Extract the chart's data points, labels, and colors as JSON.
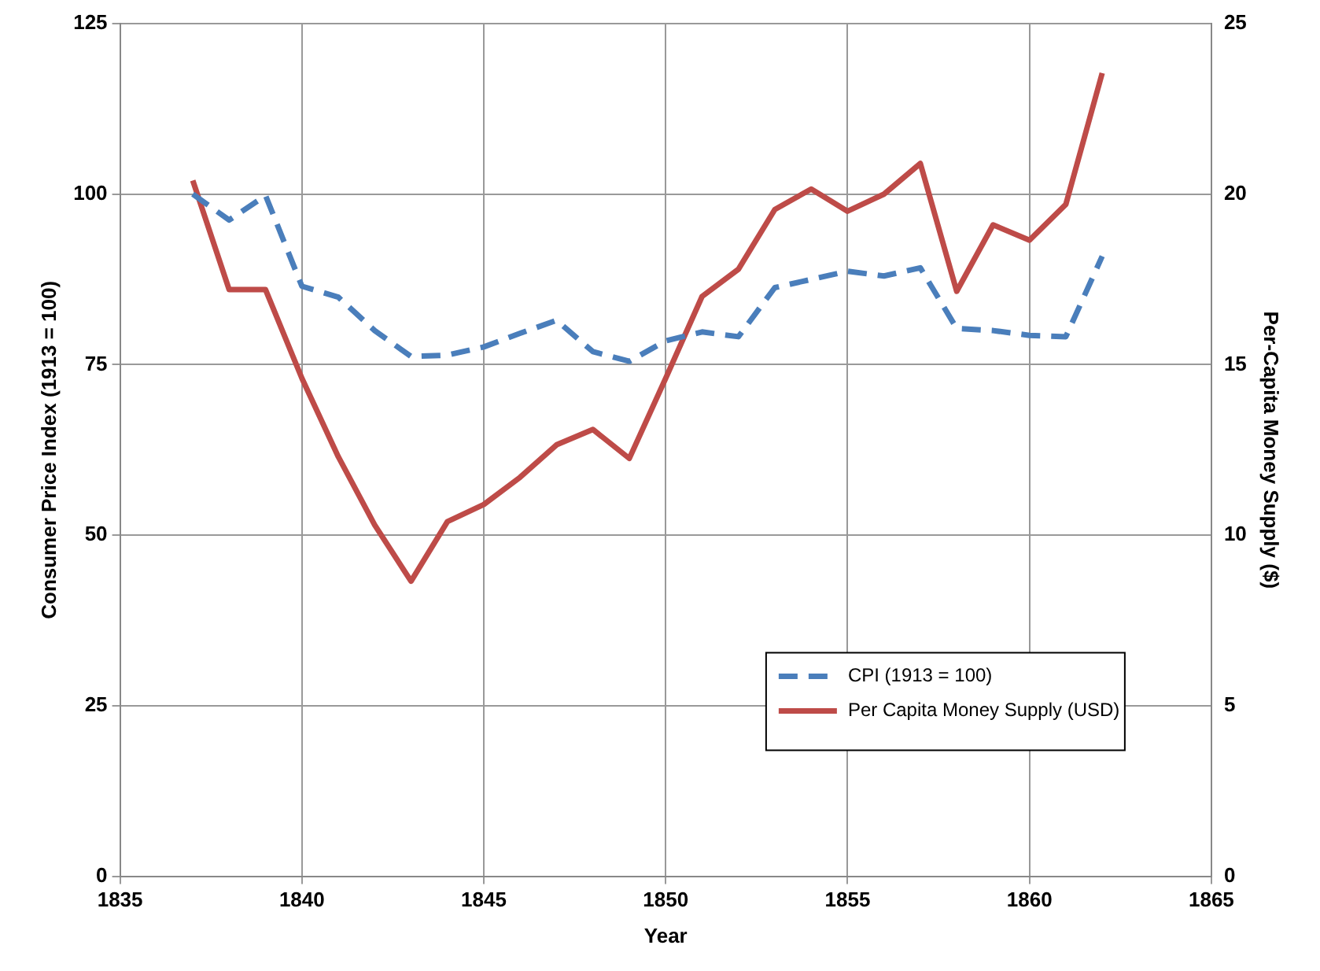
{
  "chart_data": {
    "type": "line",
    "xlabel": "Year",
    "ylabel": "Consumer Price Index (1913 = 100)",
    "y2label": "Per-Capita Money Supply ($)",
    "x": [
      1837,
      1838,
      1839,
      1840,
      1841,
      1842,
      1843,
      1844,
      1845,
      1846,
      1847,
      1848,
      1849,
      1850,
      1851,
      1852,
      1853,
      1854,
      1855,
      1856,
      1857,
      1858,
      1859,
      1860,
      1861,
      1862
    ],
    "series": [
      {
        "name": "CPI (1913 = 100)",
        "color": "#4a7ebb",
        "line_style": "dashed",
        "values": [
          100,
          96.2,
          99.8,
          86.5,
          84.9,
          80,
          76.2,
          76.4,
          77.6,
          79.6,
          81.5,
          76.9,
          75.5,
          78.5,
          79.8,
          79.1,
          86.3,
          87.5,
          88.7,
          88,
          89.2,
          80.3,
          80,
          79.3,
          79.1,
          90.9
        ]
      },
      {
        "name": "Per Capita Money Supply (USD)",
        "color": "#be4b48",
        "line_style": "solid",
        "axis": "y2",
        "values": [
          20.4,
          17.2,
          17.2,
          14.6,
          12.3,
          10.3,
          8.65,
          10.4,
          10.9,
          11.7,
          12.65,
          13.1,
          12.25,
          14.6,
          17,
          17.8,
          19.55,
          20.15,
          19.5,
          20,
          20.9,
          17.15,
          19.1,
          18.65,
          19.7,
          23.55
        ]
      }
    ],
    "xlim": [
      1835,
      1865
    ],
    "xticks": [
      1835,
      1840,
      1845,
      1850,
      1855,
      1860,
      1865
    ],
    "ylim": [
      0,
      125
    ],
    "yticks": [
      0,
      25,
      50,
      75,
      100,
      125
    ],
    "y2lim": [
      0,
      25
    ],
    "y2ticks": [
      0,
      5,
      10,
      15,
      20,
      25
    ],
    "grid": true,
    "legend": "bottom right",
    "marker": "none"
  }
}
